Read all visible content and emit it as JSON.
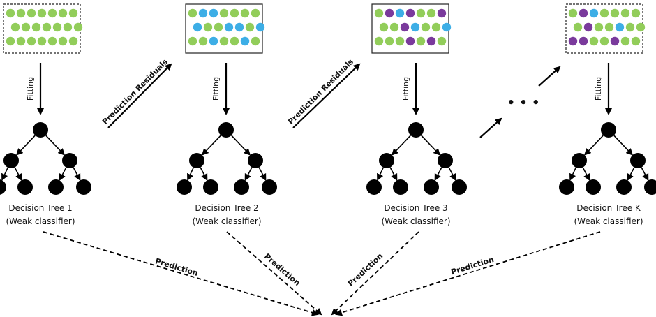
{
  "colors": {
    "green": "#92cd5a",
    "blue": "#3daee6",
    "purple": "#7a3a9c",
    "ink": "#000000"
  },
  "labels": {
    "fitting": "Fitting",
    "prediction_residuals": "Prediction Residuals",
    "prediction": "Prediction"
  },
  "trees": [
    {
      "title": "Decision Tree 1",
      "subtitle": "(Weak classifier)",
      "dataset_border": "dashed",
      "points": [
        "g",
        "g",
        "g",
        "g",
        "g",
        "g",
        "g",
        "g",
        "g",
        "g",
        "g",
        "g",
        "g",
        "g",
        "g",
        "g",
        "g",
        "g",
        "g",
        "g",
        "g"
      ]
    },
    {
      "title": "Decision Tree 2",
      "subtitle": "(Weak classifier)",
      "dataset_border": "solid",
      "points": [
        "g",
        "b",
        "b",
        "g",
        "g",
        "g",
        "g",
        "b",
        "g",
        "g",
        "b",
        "b",
        "g",
        "b",
        "g",
        "g",
        "b",
        "g",
        "g",
        "b",
        "g"
      ]
    },
    {
      "title": "Decision Tree 3",
      "subtitle": "(Weak classifier)",
      "dataset_border": "solid",
      "points": [
        "g",
        "p",
        "b",
        "p",
        "g",
        "g",
        "p",
        "g",
        "g",
        "p",
        "b",
        "g",
        "g",
        "b",
        "g",
        "g",
        "g",
        "p",
        "g",
        "p",
        "g"
      ]
    },
    {
      "title": "Decision Tree K",
      "subtitle": "(Weak classifier)",
      "dataset_border": "dashed",
      "points": [
        "g",
        "p",
        "b",
        "g",
        "g",
        "g",
        "g",
        "g",
        "p",
        "g",
        "g",
        "b",
        "g",
        "g",
        "p",
        "p",
        "g",
        "g",
        "p",
        "g",
        "g"
      ]
    }
  ],
  "ellipsis": "• • •"
}
